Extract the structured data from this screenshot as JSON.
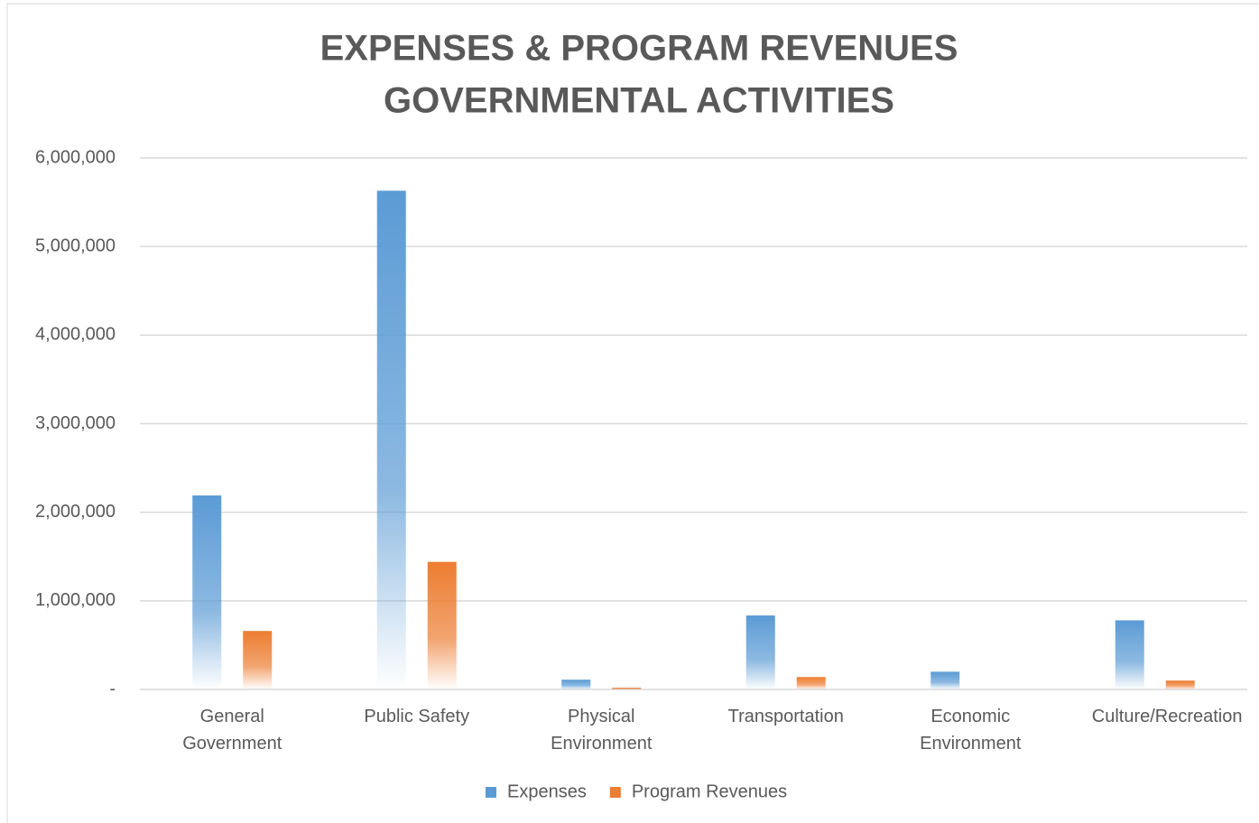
{
  "chart_data": {
    "type": "bar",
    "title": "EXPENSES & PROGRAM REVENUES",
    "subtitle": "GOVERNMENTAL ACTIVITIES",
    "categories": [
      "General Government",
      "Public Safety",
      "Physical Environment",
      "Transportation",
      "Economic Environment",
      "Culture/Recreation"
    ],
    "series": [
      {
        "name": "Expenses",
        "color": "#5b9bd5",
        "values": [
          2190000,
          5630000,
          110000,
          835000,
          200000,
          780000
        ]
      },
      {
        "name": "Program Revenues",
        "color": "#ed7d31",
        "values": [
          660000,
          1440000,
          20000,
          140000,
          0,
          100000
        ]
      }
    ],
    "ylim": [
      0,
      6000000
    ],
    "yticks": [
      {
        "value": 0,
        "label": "-"
      },
      {
        "value": 1000000,
        "label": "1,000,000"
      },
      {
        "value": 2000000,
        "label": "2,000,000"
      },
      {
        "value": 3000000,
        "label": "3,000,000"
      },
      {
        "value": 4000000,
        "label": "4,000,000"
      },
      {
        "value": 5000000,
        "label": "5,000,000"
      },
      {
        "value": 6000000,
        "label": "6,000,000"
      }
    ],
    "grid": true,
    "legend": "bottom"
  }
}
